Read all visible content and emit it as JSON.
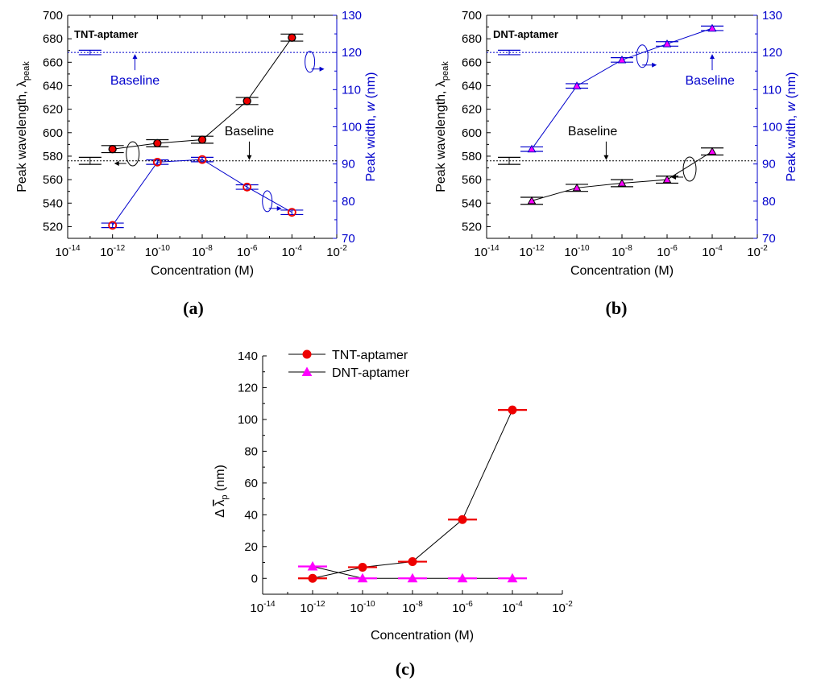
{
  "figure": {
    "panel_labels": [
      "(a)",
      "(b)",
      "(c)"
    ],
    "colors": {
      "black": "#000000",
      "blue": "#0000cc",
      "red": "#ee0000",
      "magenta": "#ff00ff"
    }
  },
  "chart_data": [
    {
      "id": "a",
      "type": "scatter",
      "title": "TNT-aptamer",
      "xlabel": "Concentration (M)",
      "xscale": "log",
      "xlim_exp": [
        -14,
        -2
      ],
      "xticks_exp": [
        -14,
        -12,
        -10,
        -8,
        -6,
        -4,
        -2
      ],
      "ylabel_left": {
        "main": "Peak wavelength, ",
        "sym": "λ",
        "sub": "peak"
      },
      "ylabel_right": {
        "main": "Peak width, ",
        "sym": "w",
        "unit": " (nm)"
      },
      "ylim_left": [
        510,
        700
      ],
      "yticks_left": [
        520,
        540,
        560,
        580,
        600,
        620,
        640,
        660,
        680,
        700
      ],
      "ylim_right": [
        70,
        130
      ],
      "yticks_right": [
        70,
        80,
        90,
        100,
        110,
        120,
        130
      ],
      "series": [
        {
          "name": "Peak wavelength",
          "axis": "left",
          "color": "#000000",
          "marker": "circle-filled",
          "x_exp": [
            -12,
            -10,
            -8,
            -6,
            -4
          ],
          "values": [
            586,
            591,
            594,
            627,
            681
          ],
          "errors": [
            3,
            3,
            3,
            3,
            3
          ]
        },
        {
          "name": "Peak width",
          "axis": "right",
          "color": "#0000cc",
          "marker": "circle-open",
          "x_exp": [
            -12,
            -10,
            -8,
            -6,
            -4
          ],
          "values": [
            73.5,
            90.5,
            91.2,
            83.8,
            77
          ],
          "errors": [
            0.6,
            0.6,
            0.6,
            0.6,
            0.6
          ]
        }
      ],
      "baselines": [
        {
          "label": "Baseline",
          "axis": "left",
          "value": 576,
          "x_exp": -13,
          "error": 3,
          "color": "#000000"
        },
        {
          "label": "Baseline",
          "axis": "right",
          "value": 120,
          "x_exp": -13,
          "error": 0.6,
          "color": "#0000cc"
        }
      ]
    },
    {
      "id": "b",
      "type": "scatter",
      "title": "DNT-aptamer",
      "xlabel": "Concentration (M)",
      "xscale": "log",
      "xlim_exp": [
        -14,
        -2
      ],
      "xticks_exp": [
        -14,
        -12,
        -10,
        -8,
        -6,
        -4,
        -2
      ],
      "ylabel_left": {
        "main": "Peak wavelength, ",
        "sym": "λ",
        "sub": "peak"
      },
      "ylabel_right": {
        "main": "Peak width, ",
        "sym": "w",
        "unit": " (nm)"
      },
      "ylim_left": [
        510,
        700
      ],
      "yticks_left": [
        520,
        540,
        560,
        580,
        600,
        620,
        640,
        660,
        680,
        700
      ],
      "ylim_right": [
        70,
        130
      ],
      "yticks_right": [
        70,
        80,
        90,
        100,
        110,
        120,
        130
      ],
      "series": [
        {
          "name": "Peak wavelength",
          "axis": "left",
          "color": "#000000",
          "marker": "triangle-filled",
          "x_exp": [
            -12,
            -10,
            -8,
            -6,
            -4
          ],
          "values": [
            542,
            553,
            557,
            560,
            584
          ],
          "errors": [
            3,
            3,
            3,
            3,
            3
          ]
        },
        {
          "name": "Peak width",
          "axis": "right",
          "color": "#0000cc",
          "marker": "triangle-open",
          "x_exp": [
            -12,
            -10,
            -8,
            -6,
            -4
          ],
          "values": [
            94,
            111,
            118,
            122.3,
            126.5
          ],
          "errors": [
            0.6,
            0.6,
            0.6,
            0.6,
            0.6
          ]
        }
      ],
      "baselines": [
        {
          "label": "Baseline",
          "axis": "left",
          "value": 576,
          "x_exp": -13,
          "error": 3,
          "color": "#000000"
        },
        {
          "label": "Baseline",
          "axis": "right",
          "value": 120,
          "x_exp": -13,
          "error": 0.6,
          "color": "#0000cc"
        }
      ]
    },
    {
      "id": "c",
      "type": "line",
      "xlabel": "Concentration (M)",
      "xscale": "log",
      "xlim_exp": [
        -14,
        -2
      ],
      "xticks_exp": [
        -14,
        -12,
        -10,
        -8,
        -6,
        -4,
        -2
      ],
      "ylabel": {
        "delta": "Δ ",
        "sym": "λ",
        "sub": "p",
        "unit": " (nm)"
      },
      "ylim": [
        -10,
        140
      ],
      "yticks": [
        0,
        20,
        40,
        60,
        80,
        100,
        120,
        140
      ],
      "legend_position": "top-left",
      "series": [
        {
          "name": "TNT-aptamer",
          "color": "#ee0000",
          "marker": "circle",
          "x_exp": [
            -12,
            -10,
            -8,
            -6,
            -4
          ],
          "values": [
            0,
            7,
            10.5,
            37,
            106
          ],
          "errors": [
            0.8,
            0.8,
            0.8,
            0.8,
            0.8
          ]
        },
        {
          "name": "DNT-aptamer",
          "color": "#ff00ff",
          "marker": "triangle",
          "x_exp": [
            -12,
            -10,
            -8,
            -6,
            -4
          ],
          "values": [
            7.5,
            0,
            0,
            0,
            0
          ],
          "errors": [
            0.8,
            0.8,
            0.8,
            0.8,
            0.8
          ]
        }
      ]
    }
  ]
}
